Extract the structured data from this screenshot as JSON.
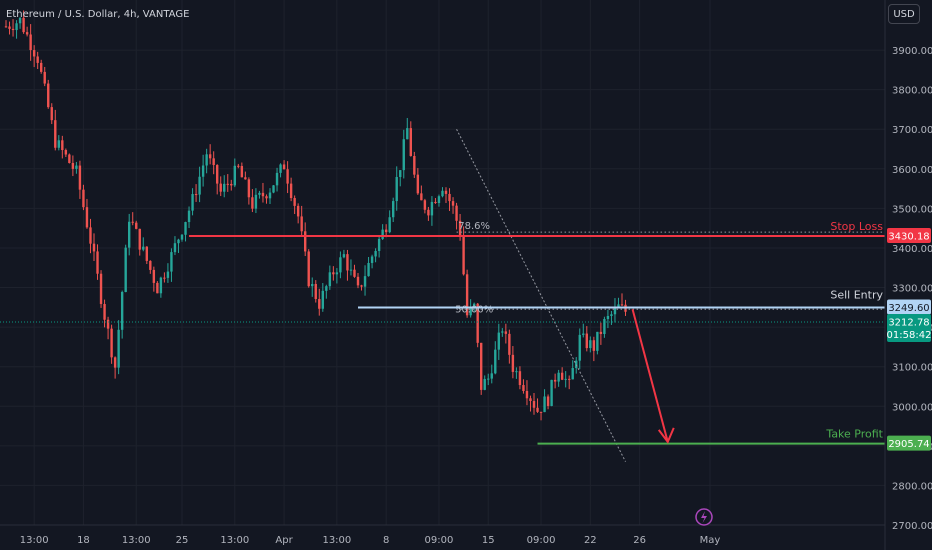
{
  "header": {
    "symbol_title": "Ethereum / U.S. Dollar, 4h, VANTAGE",
    "currency_button": "USD"
  },
  "chart_data": {
    "type": "candlestick",
    "title": "Ethereum / U.S. Dollar, 4h, VANTAGE",
    "ylim": [
      2700,
      4000
    ],
    "y_ticks": [
      2700,
      2800,
      2900,
      3000,
      3100,
      3200,
      3300,
      3400,
      3500,
      3600,
      3700,
      3800,
      3900
    ],
    "y_tick_labels": [
      "2700.00",
      "2800.00",
      "2900.00",
      "3000.00",
      "3100.00",
      "3200.00",
      "3300.00",
      "3400.00",
      "3500.00",
      "3600.00",
      "3700.00",
      "3800.00",
      "3900.00"
    ],
    "x_ticks": [
      "13:00",
      "18",
      "13:00",
      "25",
      "13:00",
      "Apr",
      "13:00",
      "8",
      "09:00",
      "15",
      "09:00",
      "22",
      "26",
      "May"
    ],
    "x_tick_bars": [
      8,
      22,
      37,
      50,
      65,
      79,
      94,
      108,
      123,
      137,
      152,
      166,
      180,
      200
    ],
    "colors": {
      "up": "#26a69a",
      "down": "#ef5350",
      "background": "#131722",
      "grid": "#1e222d"
    },
    "waypoints": [
      {
        "bar": 0,
        "price": 3960
      },
      {
        "bar": 4,
        "price": 3975
      },
      {
        "bar": 9,
        "price": 3880
      },
      {
        "bar": 14,
        "price": 3670
      },
      {
        "bar": 20,
        "price": 3590
      },
      {
        "bar": 24,
        "price": 3420
      },
      {
        "bar": 28,
        "price": 3230
      },
      {
        "bar": 31,
        "price": 3100
      },
      {
        "bar": 35,
        "price": 3480
      },
      {
        "bar": 39,
        "price": 3390
      },
      {
        "bar": 43,
        "price": 3300
      },
      {
        "bar": 47,
        "price": 3380
      },
      {
        "bar": 53,
        "price": 3520
      },
      {
        "bar": 57,
        "price": 3640
      },
      {
        "bar": 61,
        "price": 3540
      },
      {
        "bar": 66,
        "price": 3600
      },
      {
        "bar": 70,
        "price": 3510
      },
      {
        "bar": 75,
        "price": 3550
      },
      {
        "bar": 79,
        "price": 3610
      },
      {
        "bar": 83,
        "price": 3480
      },
      {
        "bar": 86,
        "price": 3320
      },
      {
        "bar": 89,
        "price": 3260
      },
      {
        "bar": 93,
        "price": 3340
      },
      {
        "bar": 96,
        "price": 3380
      },
      {
        "bar": 100,
        "price": 3290
      },
      {
        "bar": 104,
        "price": 3380
      },
      {
        "bar": 108,
        "price": 3460
      },
      {
        "bar": 112,
        "price": 3610
      },
      {
        "bar": 114,
        "price": 3700
      },
      {
        "bar": 117,
        "price": 3520
      },
      {
        "bar": 120,
        "price": 3500
      },
      {
        "bar": 124,
        "price": 3560
      },
      {
        "bar": 127,
        "price": 3500
      },
      {
        "bar": 129,
        "price": 3440
      },
      {
        "bar": 131,
        "price": 3230
      },
      {
        "bar": 133,
        "price": 3250
      },
      {
        "bar": 135,
        "price": 3050
      },
      {
        "bar": 137,
        "price": 3070
      },
      {
        "bar": 141,
        "price": 3200
      },
      {
        "bar": 144,
        "price": 3100
      },
      {
        "bar": 148,
        "price": 3040
      },
      {
        "bar": 151,
        "price": 2990
      },
      {
        "bar": 154,
        "price": 3020
      },
      {
        "bar": 157,
        "price": 3100
      },
      {
        "bar": 160,
        "price": 3050
      },
      {
        "bar": 163,
        "price": 3170
      },
      {
        "bar": 167,
        "price": 3150
      },
      {
        "bar": 170,
        "price": 3210
      },
      {
        "bar": 174,
        "price": 3250
      },
      {
        "bar": 176,
        "price": 3240
      }
    ],
    "annotations": {
      "stop_loss": {
        "label": "Stop Loss",
        "price": 3430.18,
        "price_label": "3430.18",
        "color": "#f23645"
      },
      "sell_entry": {
        "label": "Sell Entry",
        "price": 3249.6,
        "price_label": "3249.60",
        "color": "#b2d4f5"
      },
      "take_profit": {
        "label": "Take Profit",
        "price": 2905.74,
        "price_label": "2905.74",
        "color": "#4caf50"
      },
      "fib_78_6": {
        "label": "78.6%",
        "price": 3440
      },
      "fib_50": {
        "label": "50.00%",
        "price": 3245
      },
      "last_price": {
        "price": 3212.78,
        "price_label": "3212.78",
        "countdown": "01:58:42",
        "color": "#089981"
      }
    }
  }
}
